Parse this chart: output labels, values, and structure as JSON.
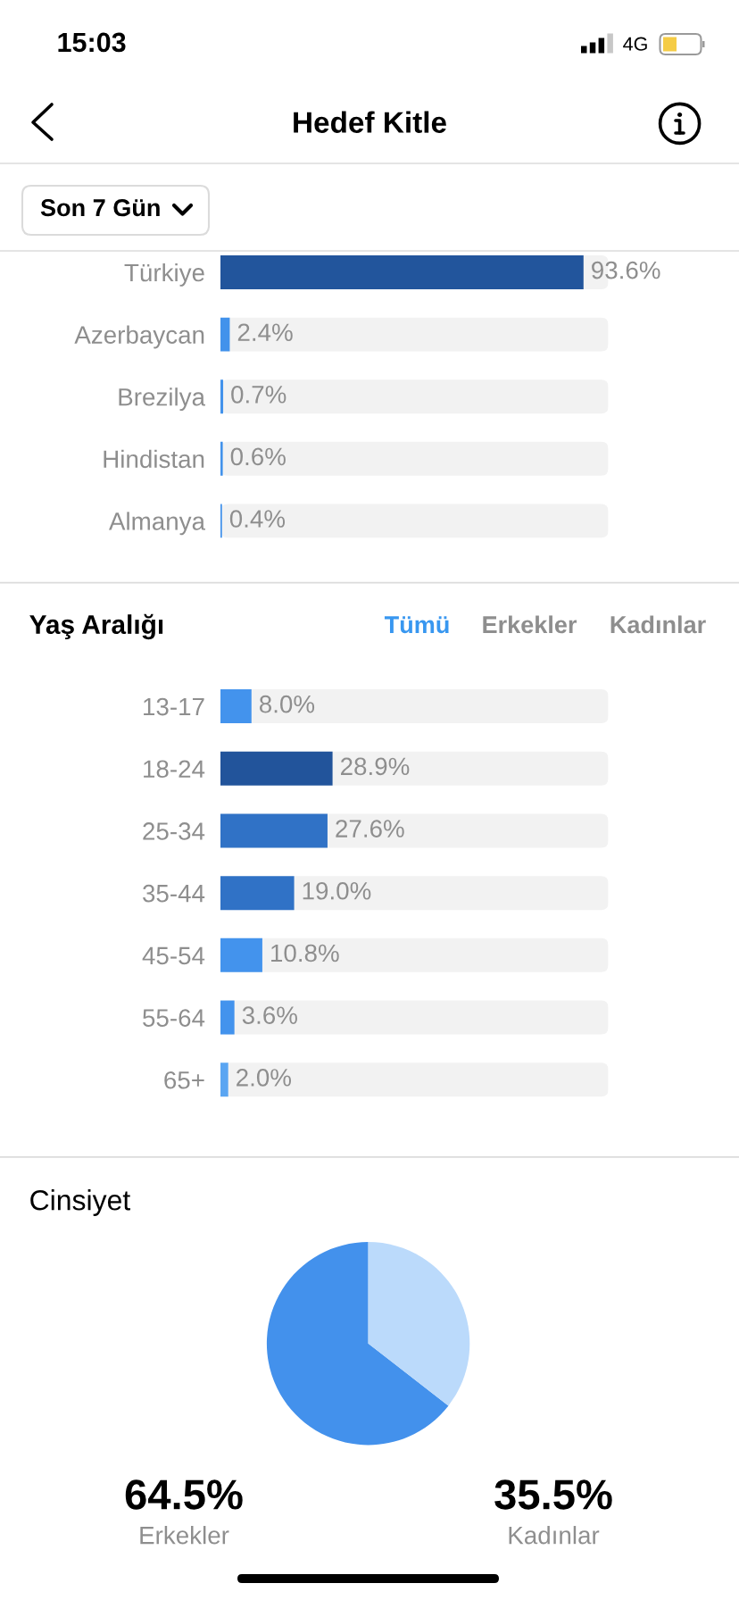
{
  "chart_data": [
    {
      "type": "bar",
      "orientation": "horizontal",
      "title": "Hedef Kitle",
      "subtitle": "Son 7 Gün",
      "annotations": [
        "15:03",
        "4G"
      ],
      "categories": [
        "Türkiye",
        "Azerbaycan",
        "Brezilya",
        "Hindistan",
        "Almanya"
      ],
      "values": [
        93.6,
        2.4,
        0.7,
        0.6,
        0.4
      ],
      "colors": [
        "#22559c",
        "#4292eb",
        "#4292eb",
        "#4292eb",
        "#4292eb"
      ],
      "value_labels": [
        "93.6%",
        "2.4%",
        "0.7%",
        "0.6%",
        "0.4%"
      ],
      "xlim": [
        0,
        100
      ],
      "tick_labels": "y"
    },
    {
      "type": "bar",
      "orientation": "horizontal",
      "title": "Yaş Aralığı",
      "annotations": [
        "Tümü",
        "Erkekler",
        "Kadınlar"
      ],
      "categories": [
        "13-17",
        "18-24",
        "25-34",
        "35-44",
        "45-54",
        "55-64",
        "65+"
      ],
      "values": [
        8.0,
        28.9,
        27.6,
        19.0,
        10.8,
        3.6,
        2.0
      ],
      "colors": [
        "#4393ed",
        "#22549b",
        "#3072c6",
        "#3072c6",
        "#4393ed",
        "#4393ed",
        "#5aa5f2"
      ],
      "value_labels": [
        "8.0%",
        "28.9%",
        "27.6%",
        "19.0%",
        "10.8%",
        "3.6%",
        "2.0%"
      ],
      "xlim": [
        0,
        100
      ],
      "tick_labels": "y"
    },
    {
      "type": "pie",
      "title": "Cinsiyet",
      "categories": [
        "Erkekler",
        "Kadınlar"
      ],
      "values": [
        64.5,
        35.5
      ],
      "colors": [
        "#4391ec",
        "#bbdafb"
      ],
      "value_labels": [
        "64.5%",
        "35.5%"
      ]
    }
  ]
}
